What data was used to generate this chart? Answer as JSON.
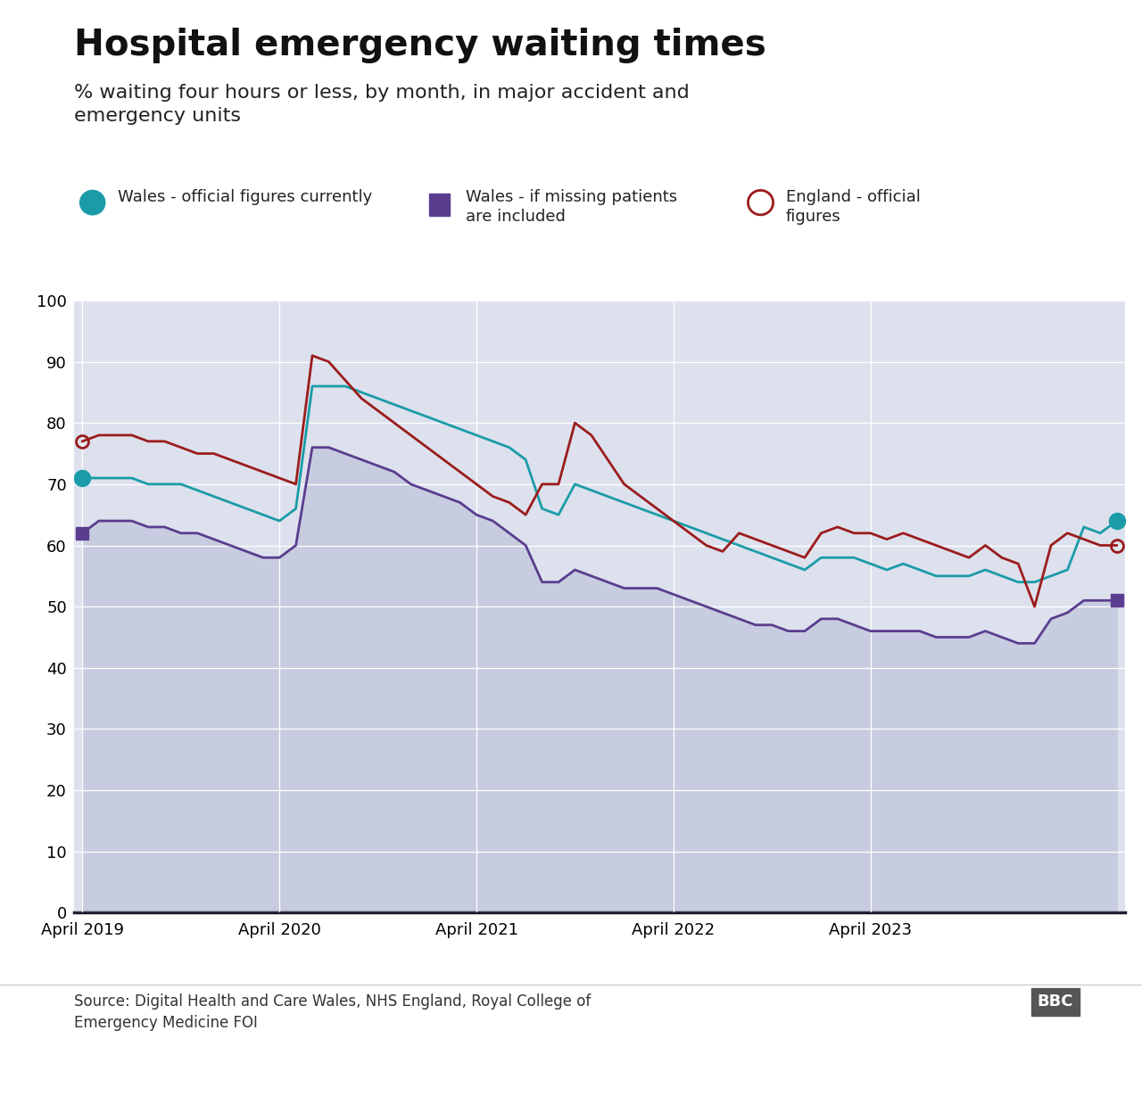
{
  "title": "Hospital emergency waiting times",
  "subtitle": "% waiting four hours or less, by month, in major accident and\nemergency units",
  "source": "Source: Digital Health and Care Wales, NHS England, Royal College of\nEmergency Medicine FOI",
  "background_color": "#ffffff",
  "plot_bg_color": "#dde1ed",
  "wales_official_color": "#1a9ca8",
  "wales_missing_color": "#5b3d8f",
  "england_color": "#9b1c1c",
  "fill_color": "#c8cce0",
  "legend": {
    "wales_official": "Wales - official figures currently",
    "wales_missing": "Wales - if missing patients\nare included",
    "england": "England - official\nfigures"
  },
  "x_ticks": [
    "April 2019",
    "April 2020",
    "April 2021",
    "April 2022",
    "April 2023"
  ],
  "x_tick_positions": [
    0,
    12,
    24,
    36,
    48
  ],
  "ylim": [
    0,
    100
  ],
  "yticks": [
    0,
    10,
    20,
    30,
    40,
    50,
    60,
    70,
    80,
    90,
    100
  ],
  "wales_official": [
    71,
    71,
    71,
    71,
    70,
    70,
    70,
    69,
    68,
    67,
    66,
    65,
    64,
    66,
    86,
    86,
    86,
    85,
    84,
    83,
    82,
    81,
    80,
    79,
    78,
    77,
    76,
    74,
    66,
    65,
    70,
    69,
    68,
    67,
    66,
    65,
    64,
    63,
    62,
    61,
    60,
    59,
    58,
    57,
    56,
    58,
    58,
    58,
    57,
    56,
    57,
    56,
    55,
    55,
    55,
    56,
    55,
    54,
    54,
    55,
    56,
    63,
    62,
    64
  ],
  "wales_missing": [
    62,
    64,
    64,
    64,
    63,
    63,
    62,
    62,
    61,
    60,
    59,
    58,
    58,
    60,
    76,
    76,
    75,
    74,
    73,
    72,
    70,
    69,
    68,
    67,
    65,
    64,
    62,
    60,
    54,
    54,
    56,
    55,
    54,
    53,
    53,
    53,
    52,
    51,
    50,
    49,
    48,
    47,
    47,
    46,
    46,
    48,
    48,
    47,
    46,
    46,
    46,
    46,
    45,
    45,
    45,
    46,
    45,
    44,
    44,
    48,
    49,
    51,
    51,
    51
  ],
  "england_official": [
    77,
    78,
    78,
    78,
    77,
    77,
    76,
    75,
    75,
    74,
    73,
    72,
    71,
    70,
    91,
    90,
    87,
    84,
    82,
    80,
    78,
    76,
    74,
    72,
    70,
    68,
    67,
    65,
    70,
    70,
    80,
    78,
    74,
    70,
    68,
    66,
    64,
    62,
    60,
    59,
    62,
    61,
    60,
    59,
    58,
    62,
    63,
    62,
    62,
    61,
    62,
    61,
    60,
    59,
    58,
    60,
    58,
    57,
    50,
    60,
    62,
    61,
    60,
    60
  ]
}
